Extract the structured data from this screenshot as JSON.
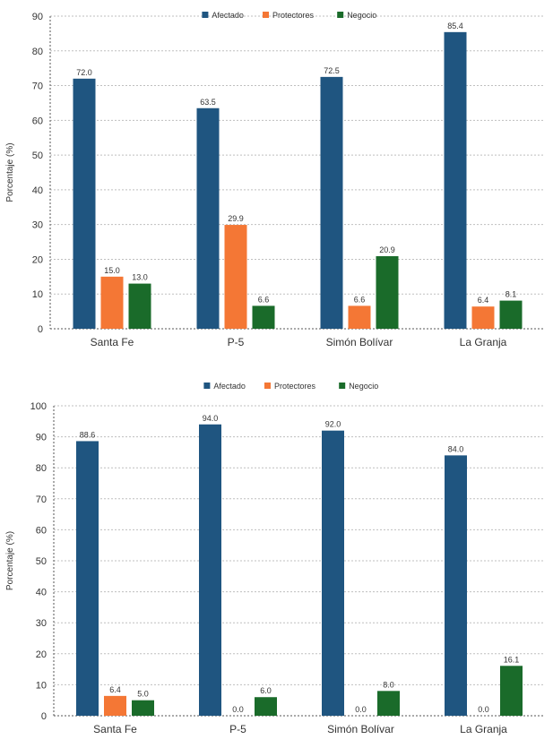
{
  "colors": {
    "series1": "#1f5580",
    "series2": "#f47735",
    "series3": "#1a6b2a"
  },
  "chart_data": [
    {
      "type": "bar",
      "categories": [
        "Santa Fe",
        "P-5",
        "Simón Bolívar",
        "La Granja"
      ],
      "series": [
        {
          "name": "Afectado",
          "values": [
            72.0,
            63.5,
            72.5,
            85.4
          ]
        },
        {
          "name": "Protectores",
          "values": [
            15.0,
            29.9,
            6.6,
            6.4
          ]
        },
        {
          "name": "Negocio",
          "values": [
            13.0,
            6.6,
            20.9,
            8.1
          ]
        }
      ],
      "value_labels": [
        [
          "72.0",
          "63.5",
          "72.5",
          "85.4"
        ],
        [
          "15.0",
          "29.9",
          "6.6",
          "6.4"
        ],
        [
          "13.0",
          "6.6",
          "20.9",
          "8.1"
        ]
      ],
      "ylabel": "Porcentaje (%)",
      "ylim": [
        0,
        90
      ],
      "yticks": [
        "0",
        "10",
        "20",
        "30",
        "40",
        "50",
        "60",
        "70",
        "80",
        "90"
      ],
      "legend": "top-center",
      "grid": true
    },
    {
      "type": "bar",
      "categories": [
        "Santa Fe",
        "P-5",
        "Simón Bolívar",
        "La Granja"
      ],
      "series": [
        {
          "name": "Afectado",
          "values": [
            88.6,
            94.0,
            92.0,
            84.0
          ]
        },
        {
          "name": "Protectores",
          "values": [
            6.4,
            0.0,
            0.0,
            0.0
          ]
        },
        {
          "name": "Negocio",
          "values": [
            5.0,
            6.0,
            8.0,
            16.1
          ]
        }
      ],
      "value_labels": [
        [
          "88.6",
          "94.0",
          "92.0",
          "84.0"
        ],
        [
          "6.4",
          "0.0",
          "0.0",
          "0.0"
        ],
        [
          "5.0",
          "6.0",
          "8.0",
          "16.1"
        ]
      ],
      "ylabel": "Porcentaje (%)",
      "ylim": [
        0,
        100
      ],
      "yticks": [
        "0",
        "10",
        "20",
        "30",
        "40",
        "50",
        "60",
        "70",
        "80",
        "90",
        "100"
      ],
      "legend": "top-center",
      "grid": true
    }
  ]
}
